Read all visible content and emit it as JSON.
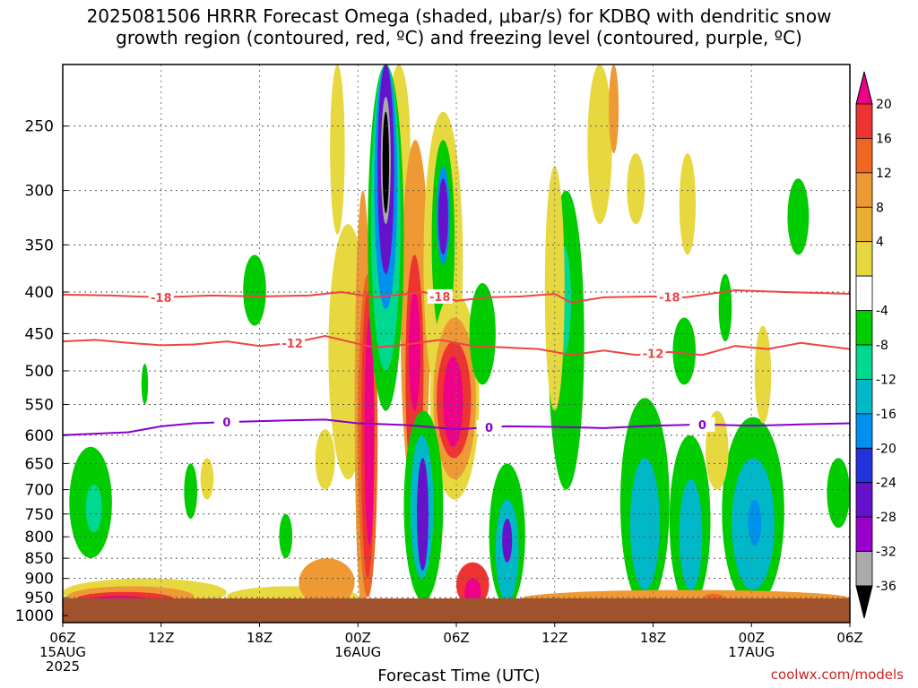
{
  "title": {
    "line1": "2025081506 HRRR Forecast Omega (shaded, μbar/s) for KDBQ with dendritic snow",
    "line2": "growth region (contoured, red, ºC) and freezing level (contoured, purple, ºC)"
  },
  "credit": "coolwx.com/models",
  "chart_data": {
    "type": "heatmap",
    "xlabel": "Forecast Time (UTC)",
    "ylabel": "",
    "x_range_hours": [
      0,
      48
    ],
    "y_range_hpa": [
      210,
      1020
    ],
    "y_scale": "log-pressure (inverted)",
    "y_ticks": [
      250,
      300,
      350,
      400,
      450,
      500,
      550,
      600,
      650,
      700,
      750,
      800,
      850,
      900,
      950,
      1000
    ],
    "x_ticks": [
      {
        "hour": 0,
        "label": "06Z",
        "sub": [
          "15AUG",
          "2025"
        ]
      },
      {
        "hour": 6,
        "label": "12Z",
        "sub": []
      },
      {
        "hour": 12,
        "label": "18Z",
        "sub": []
      },
      {
        "hour": 18,
        "label": "00Z",
        "sub": [
          "16AUG"
        ]
      },
      {
        "hour": 24,
        "label": "06Z",
        "sub": []
      },
      {
        "hour": 30,
        "label": "12Z",
        "sub": []
      },
      {
        "hour": 36,
        "label": "18Z",
        "sub": []
      },
      {
        "hour": 42,
        "label": "00Z",
        "sub": [
          "17AUG"
        ]
      },
      {
        "hour": 48,
        "label": "06Z",
        "sub": []
      }
    ],
    "grid": true,
    "ground_level_hpa": 975,
    "colorbar": {
      "placement": "right",
      "labels": [
        "20",
        "16",
        "12",
        "8",
        "4",
        "-4",
        "-8",
        "-12",
        "-16",
        "-20",
        "-24",
        "-28",
        "-32",
        "-36"
      ],
      "colors": [
        "#ee0088",
        "#ee3333",
        "#ee6622",
        "#ee9933",
        "#e8b030",
        "#e8d840",
        "#ffffff",
        "#00cc00",
        "#00d890",
        "#00b8c8",
        "#0090ee",
        "#2233dd",
        "#6611cc",
        "#9900cc",
        "#aaaaaa",
        "#000000"
      ]
    },
    "contours": [
      {
        "label": "-18",
        "color": "#ee4444",
        "label_hours": [
          6,
          23,
          37
        ],
        "points": [
          [
            0,
            403
          ],
          [
            3,
            404
          ],
          [
            6,
            406
          ],
          [
            9,
            404
          ],
          [
            12,
            405
          ],
          [
            15,
            404
          ],
          [
            17,
            400
          ],
          [
            19,
            406
          ],
          [
            21,
            402
          ],
          [
            22,
            400
          ],
          [
            24,
            410
          ],
          [
            26,
            406
          ],
          [
            28,
            405
          ],
          [
            30,
            402
          ],
          [
            31,
            412
          ],
          [
            33,
            406
          ],
          [
            36,
            405
          ],
          [
            38,
            406
          ],
          [
            41,
            398
          ],
          [
            44,
            400
          ],
          [
            48,
            402
          ]
        ]
      },
      {
        "label": "-12",
        "color": "#ee4444",
        "label_hours": [
          14,
          36
        ],
        "points": [
          [
            0,
            460
          ],
          [
            2,
            458
          ],
          [
            4,
            462
          ],
          [
            6,
            465
          ],
          [
            8,
            464
          ],
          [
            10,
            460
          ],
          [
            12,
            466
          ],
          [
            14,
            462
          ],
          [
            16,
            453
          ],
          [
            17,
            458
          ],
          [
            19,
            468
          ],
          [
            21,
            464
          ],
          [
            23,
            458
          ],
          [
            25,
            466
          ],
          [
            27,
            468
          ],
          [
            29,
            470
          ],
          [
            31,
            478
          ],
          [
            33,
            472
          ],
          [
            35,
            478
          ],
          [
            37,
            474
          ],
          [
            39,
            478
          ],
          [
            41,
            466
          ],
          [
            43,
            470
          ],
          [
            45,
            462
          ],
          [
            48,
            470
          ]
        ]
      },
      {
        "label": "0",
        "color": "#8800cc",
        "label_hours": [
          10,
          26,
          39
        ],
        "points": [
          [
            0,
            600
          ],
          [
            4,
            595
          ],
          [
            6,
            585
          ],
          [
            8,
            580
          ],
          [
            10,
            578
          ],
          [
            14,
            575
          ],
          [
            16,
            574
          ],
          [
            18,
            580
          ],
          [
            21,
            583
          ],
          [
            24,
            590
          ],
          [
            27,
            585
          ],
          [
            30,
            586
          ],
          [
            33,
            588
          ],
          [
            36,
            584
          ],
          [
            39,
            582
          ],
          [
            42,
            584
          ],
          [
            45,
            582
          ],
          [
            48,
            580
          ]
        ]
      }
    ],
    "blobs": [
      {
        "color": "#e8d840",
        "x": [
          16.3,
          17.2
        ],
        "p": [
          210,
          340
        ]
      },
      {
        "color": "#e8d840",
        "x": [
          16.2,
          18.6
        ],
        "p": [
          330,
          680
        ]
      },
      {
        "color": "#ee9933",
        "x": [
          17.8,
          18.8
        ],
        "p": [
          300,
          1000
        ]
      },
      {
        "color": "#ee6622",
        "x": [
          18.0,
          19.2
        ],
        "p": [
          380,
          950
        ]
      },
      {
        "color": "#ee3333",
        "x": [
          18.2,
          19.0
        ],
        "p": [
          400,
          900
        ]
      },
      {
        "color": "#ee0088",
        "x": [
          18.4,
          19.0
        ],
        "p": [
          430,
          820
        ]
      },
      {
        "color": "#e8d840",
        "x": [
          19.8,
          21.2
        ],
        "p": [
          210,
          340
        ]
      },
      {
        "color": "#ee9933",
        "x": [
          20.6,
          22.4
        ],
        "p": [
          260,
          720
        ]
      },
      {
        "color": "#ee3333",
        "x": [
          20.9,
          22.0
        ],
        "p": [
          360,
          700
        ]
      },
      {
        "color": "#ee0088",
        "x": [
          21.1,
          21.8
        ],
        "p": [
          400,
          560
        ]
      },
      {
        "color": "#00cc00",
        "x": [
          18.6,
          20.8
        ],
        "p": [
          210,
          560
        ]
      },
      {
        "color": "#00d890",
        "x": [
          18.8,
          20.6
        ],
        "p": [
          210,
          500
        ]
      },
      {
        "color": "#0090ee",
        "x": [
          19.0,
          20.4
        ],
        "p": [
          210,
          420
        ]
      },
      {
        "color": "#6611cc",
        "x": [
          19.2,
          20.2
        ],
        "p": [
          210,
          380
        ]
      },
      {
        "color": "#aaaaaa",
        "x": [
          19.4,
          20.0
        ],
        "p": [
          230,
          330
        ]
      },
      {
        "color": "#000000",
        "x": [
          19.5,
          19.9
        ],
        "p": [
          240,
          320
        ]
      },
      {
        "color": "#e8d840",
        "x": [
          22.0,
          24.4
        ],
        "p": [
          240,
          560
        ]
      },
      {
        "color": "#00cc00",
        "x": [
          22.5,
          23.9
        ],
        "p": [
          260,
          460
        ]
      },
      {
        "color": "#0090ee",
        "x": [
          22.8,
          23.6
        ],
        "p": [
          280,
          370
        ]
      },
      {
        "color": "#6611cc",
        "x": [
          22.9,
          23.5
        ],
        "p": [
          290,
          360
        ]
      },
      {
        "color": "#e8d840",
        "x": [
          22.4,
          25.4
        ],
        "p": [
          400,
          720
        ]
      },
      {
        "color": "#ee9933",
        "x": [
          22.6,
          25.2
        ],
        "p": [
          430,
          680
        ]
      },
      {
        "color": "#ee3333",
        "x": [
          22.8,
          24.9
        ],
        "p": [
          460,
          640
        ]
      },
      {
        "color": "#ee0088",
        "x": [
          23.2,
          24.4
        ],
        "p": [
          480,
          620
        ]
      },
      {
        "color": "#00cc00",
        "x": [
          20.8,
          23.2
        ],
        "p": [
          560,
          960
        ]
      },
      {
        "color": "#00b8c8",
        "x": [
          21.2,
          22.6
        ],
        "p": [
          600,
          900
        ]
      },
      {
        "color": "#6611cc",
        "x": [
          21.6,
          22.3
        ],
        "p": [
          640,
          880
        ]
      },
      {
        "color": "#ee3333",
        "x": [
          24.0,
          26.0
        ],
        "p": [
          860,
          975
        ]
      },
      {
        "color": "#ee0088",
        "x": [
          24.5,
          25.5
        ],
        "p": [
          900,
          975
        ]
      },
      {
        "color": "#00cc00",
        "x": [
          26.0,
          28.2
        ],
        "p": [
          650,
          975
        ]
      },
      {
        "color": "#00b8c8",
        "x": [
          26.4,
          27.8
        ],
        "p": [
          720,
          960
        ]
      },
      {
        "color": "#6611cc",
        "x": [
          26.8,
          27.4
        ],
        "p": [
          760,
          860
        ]
      },
      {
        "color": "#00cc00",
        "x": [
          24.8,
          26.4
        ],
        "p": [
          390,
          520
        ]
      },
      {
        "color": "#00cc00",
        "x": [
          29.6,
          31.8
        ],
        "p": [
          300,
          700
        ]
      },
      {
        "color": "#00d890",
        "x": [
          30.0,
          31.0
        ],
        "p": [
          350,
          480
        ]
      },
      {
        "color": "#e8d840",
        "x": [
          29.4,
          30.6
        ],
        "p": [
          280,
          560
        ]
      },
      {
        "color": "#e8d840",
        "x": [
          32.0,
          33.5
        ],
        "p": [
          210,
          330
        ]
      },
      {
        "color": "#ee9933",
        "x": [
          33.3,
          33.9
        ],
        "p": [
          210,
          270
        ]
      },
      {
        "color": "#e8d840",
        "x": [
          34.4,
          35.5
        ],
        "p": [
          270,
          330
        ]
      },
      {
        "color": "#e8d840",
        "x": [
          37.6,
          38.6
        ],
        "p": [
          270,
          360
        ]
      },
      {
        "color": "#00cc00",
        "x": [
          44.2,
          45.5
        ],
        "p": [
          290,
          360
        ]
      },
      {
        "color": "#00cc00",
        "x": [
          34.0,
          37.0
        ],
        "p": [
          540,
          975
        ]
      },
      {
        "color": "#00b8c8",
        "x": [
          34.6,
          36.4
        ],
        "p": [
          640,
          930
        ]
      },
      {
        "color": "#00cc00",
        "x": [
          37.0,
          39.5
        ],
        "p": [
          600,
          975
        ]
      },
      {
        "color": "#00b8c8",
        "x": [
          37.6,
          39.0
        ],
        "p": [
          680,
          930
        ]
      },
      {
        "color": "#00cc00",
        "x": [
          40.2,
          44.0
        ],
        "p": [
          570,
          975
        ]
      },
      {
        "color": "#00b8c8",
        "x": [
          40.8,
          43.4
        ],
        "p": [
          640,
          930
        ]
      },
      {
        "color": "#0090ee",
        "x": [
          41.8,
          42.6
        ],
        "p": [
          720,
          820
        ]
      },
      {
        "color": "#e8d840",
        "x": [
          39.2,
          40.6
        ],
        "p": [
          560,
          700
        ]
      },
      {
        "color": "#00cc00",
        "x": [
          46.6,
          48.0
        ],
        "p": [
          640,
          780
        ]
      },
      {
        "color": "#00cc00",
        "x": [
          37.2,
          38.6
        ],
        "p": [
          430,
          520
        ]
      },
      {
        "color": "#e8d840",
        "x": [
          42.2,
          43.2
        ],
        "p": [
          440,
          580
        ]
      },
      {
        "color": "#00cc00",
        "x": [
          40.0,
          40.8
        ],
        "p": [
          380,
          460
        ]
      },
      {
        "color": "#00cc00",
        "x": [
          0.4,
          3.0
        ],
        "p": [
          620,
          850
        ]
      },
      {
        "color": "#00d890",
        "x": [
          1.4,
          2.4
        ],
        "p": [
          690,
          790
        ]
      },
      {
        "color": "#00cc00",
        "x": [
          11.0,
          12.4
        ],
        "p": [
          360,
          440
        ]
      },
      {
        "color": "#00cc00",
        "x": [
          7.4,
          8.2
        ],
        "p": [
          650,
          760
        ]
      },
      {
        "color": "#00cc00",
        "x": [
          13.2,
          14.0
        ],
        "p": [
          750,
          850
        ]
      },
      {
        "color": "#00cc00",
        "x": [
          4.8,
          5.2
        ],
        "p": [
          490,
          550
        ]
      },
      {
        "color": "#e8d840",
        "x": [
          0.0,
          10.0
        ],
        "p": [
          900,
          975
        ]
      },
      {
        "color": "#ee9933",
        "x": [
          0.3,
          8.0
        ],
        "p": [
          920,
          975
        ]
      },
      {
        "color": "#ee3333",
        "x": [
          0.8,
          6.8
        ],
        "p": [
          935,
          975
        ]
      },
      {
        "color": "#ee0088",
        "x": [
          1.4,
          5.4
        ],
        "p": [
          945,
          975
        ]
      },
      {
        "color": "#e8d840",
        "x": [
          10.0,
          18.0
        ],
        "p": [
          920,
          975
        ]
      },
      {
        "color": "#ee9933",
        "x": [
          14.4,
          17.8
        ],
        "p": [
          850,
          975
        ]
      },
      {
        "color": "#ee9933",
        "x": [
          28.0,
          48.0
        ],
        "p": [
          930,
          975
        ]
      },
      {
        "color": "#ee6622",
        "x": [
          39.0,
          40.4
        ],
        "p": [
          940,
          975
        ]
      },
      {
        "color": "#e8d840",
        "x": [
          15.4,
          16.6
        ],
        "p": [
          590,
          700
        ]
      },
      {
        "color": "#e8d840",
        "x": [
          8.4,
          9.2
        ],
        "p": [
          640,
          720
        ]
      }
    ]
  }
}
